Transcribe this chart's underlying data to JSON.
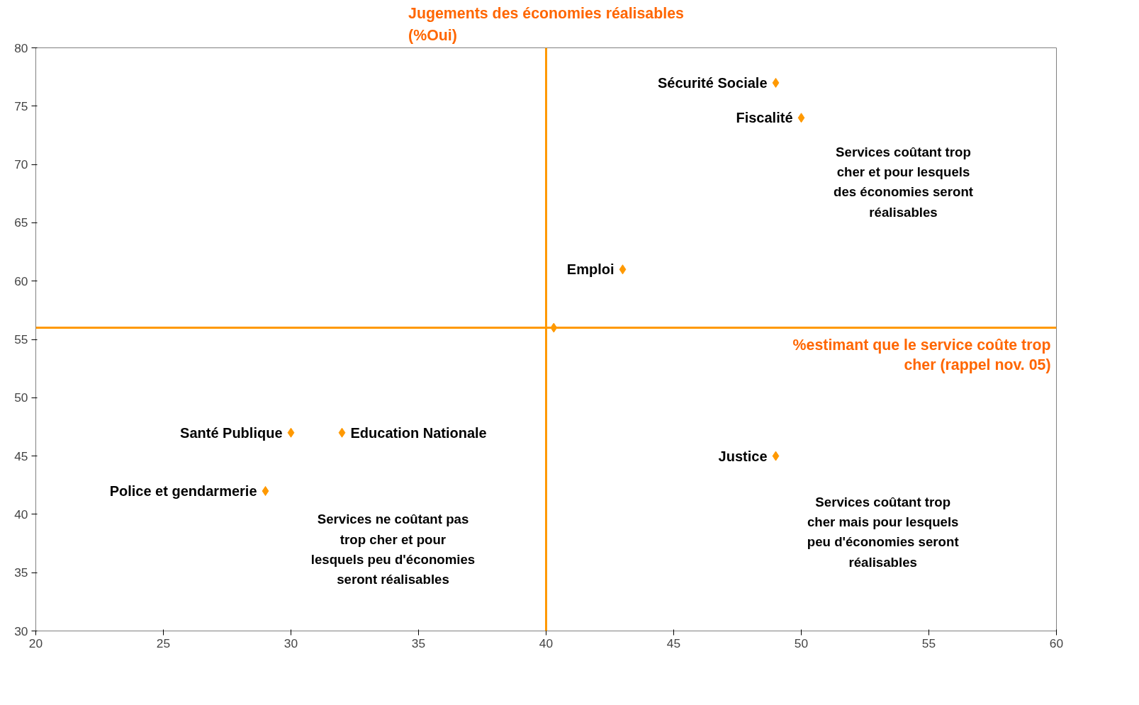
{
  "chart_data": {
    "type": "scatter",
    "marker": "diamond",
    "grid": false,
    "xlim": [
      20,
      60
    ],
    "ylim": [
      30,
      80
    ],
    "xticks": [
      20,
      25,
      30,
      35,
      40,
      45,
      50,
      55,
      60
    ],
    "yticks": [
      30,
      35,
      40,
      45,
      50,
      55,
      60,
      65,
      70,
      75,
      80
    ],
    "series": [
      {
        "color": "#ff9900",
        "x": [
          49,
          50,
          43,
          30,
          32,
          29,
          49,
          40.3
        ],
        "values": [
          77,
          74,
          61,
          47,
          47,
          42,
          45,
          56
        ]
      }
    ],
    "ref_lines": [
      {
        "axis": "x",
        "value": 40,
        "label": "Jugements des économies réalisables (%Oui)",
        "color": "#ff9900"
      },
      {
        "axis": "y",
        "value": 56,
        "label": "%estimant que le service coûte trop cher (rappel nov. 05)",
        "color": "#ff9900"
      }
    ],
    "annotations": [
      {
        "text": "Sécurité Sociale",
        "x": 49,
        "y": 77
      },
      {
        "text": "Fiscalité",
        "x": 50,
        "y": 74
      },
      {
        "text": "Emploi",
        "x": 43,
        "y": 61
      },
      {
        "text": "Santé Publique",
        "x": 30,
        "y": 47
      },
      {
        "text": "Education Nationale",
        "x": 32,
        "y": 47
      },
      {
        "text": "Police et gendarmerie",
        "x": 29,
        "y": 42
      },
      {
        "text": "Justice",
        "x": 49,
        "y": 45
      },
      "Services coûtant trop cher et pour lesquels des économies seront réalisables",
      "Services coûtant trop cher mais pour lesquels peu d'économies seront réalisables",
      "Services ne coûtant pas trop cher et pour lesquels peu d'économies seront réalisables"
    ]
  }
}
